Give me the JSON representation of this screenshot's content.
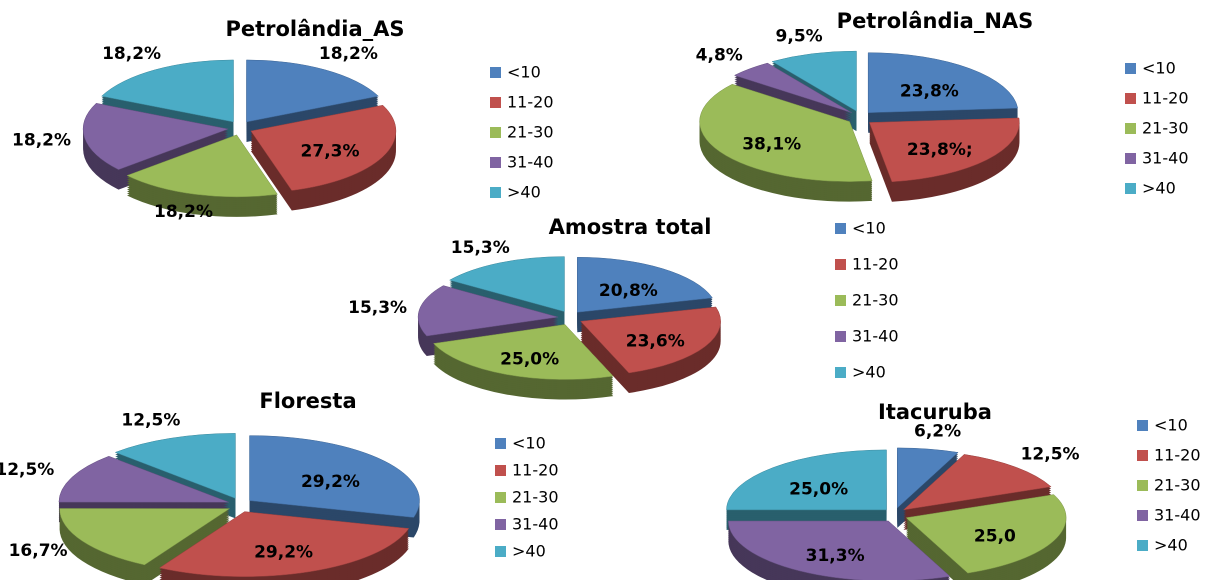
{
  "chart_data": [
    {
      "type": "pie",
      "title": "Petrolândia_AS",
      "categories": [
        "<10",
        "11-20",
        "21-30",
        "31-40",
        ">40"
      ],
      "values": [
        18.2,
        27.3,
        18.2,
        18.2,
        18.2
      ],
      "value_labels": [
        "18,2%",
        "27,3%",
        "18,2%",
        "18,2%",
        "18,2%"
      ],
      "colors": [
        "#4f81bd",
        "#c0504d",
        "#9bbb59",
        "#8064a2",
        "#4bacc6"
      ]
    },
    {
      "type": "pie",
      "title": "Petrolândia_NAS",
      "categories": [
        "<10",
        "11-20",
        "21-30",
        "31-40",
        ">40"
      ],
      "values": [
        23.8,
        23.8,
        38.1,
        4.8,
        9.5
      ],
      "value_labels": [
        "23,8%",
        "23,8%;",
        "38,1%",
        "4,8%",
        "9,5%"
      ],
      "colors": [
        "#4f81bd",
        "#c0504d",
        "#9bbb59",
        "#8064a2",
        "#4bacc6"
      ]
    },
    {
      "type": "pie",
      "title": "Amostra total",
      "categories": [
        "<10",
        "11-20",
        "21-30",
        "31-40",
        ">40"
      ],
      "values": [
        20.8,
        23.6,
        25.0,
        15.3,
        15.3
      ],
      "value_labels": [
        "20,8%",
        "23,6%",
        "25,0%",
        "15,3%",
        "15,3%"
      ],
      "colors": [
        "#4f81bd",
        "#c0504d",
        "#9bbb59",
        "#8064a2",
        "#4bacc6"
      ]
    },
    {
      "type": "pie",
      "title": "Floresta",
      "categories": [
        "<10",
        "11-20",
        "21-30",
        "31-40",
        ">40"
      ],
      "values": [
        29.2,
        29.2,
        16.7,
        12.5,
        12.5
      ],
      "value_labels": [
        "29,2%",
        "29,2%",
        "16,7%",
        "12,5%",
        "12,5%"
      ],
      "colors": [
        "#4f81bd",
        "#c0504d",
        "#9bbb59",
        "#8064a2",
        "#4bacc6"
      ]
    },
    {
      "type": "pie",
      "title": "Itacuruba",
      "categories": [
        "<10",
        "11-20",
        "21-30",
        "31-40",
        ">40"
      ],
      "values": [
        6.2,
        12.5,
        25.0,
        31.3,
        25.0
      ],
      "value_labels": [
        "6,2%",
        "12,5%",
        "25,0",
        "31,3%",
        "25,0%"
      ],
      "colors": [
        "#4f81bd",
        "#c0504d",
        "#9bbb59",
        "#8064a2",
        "#4bacc6"
      ]
    }
  ]
}
